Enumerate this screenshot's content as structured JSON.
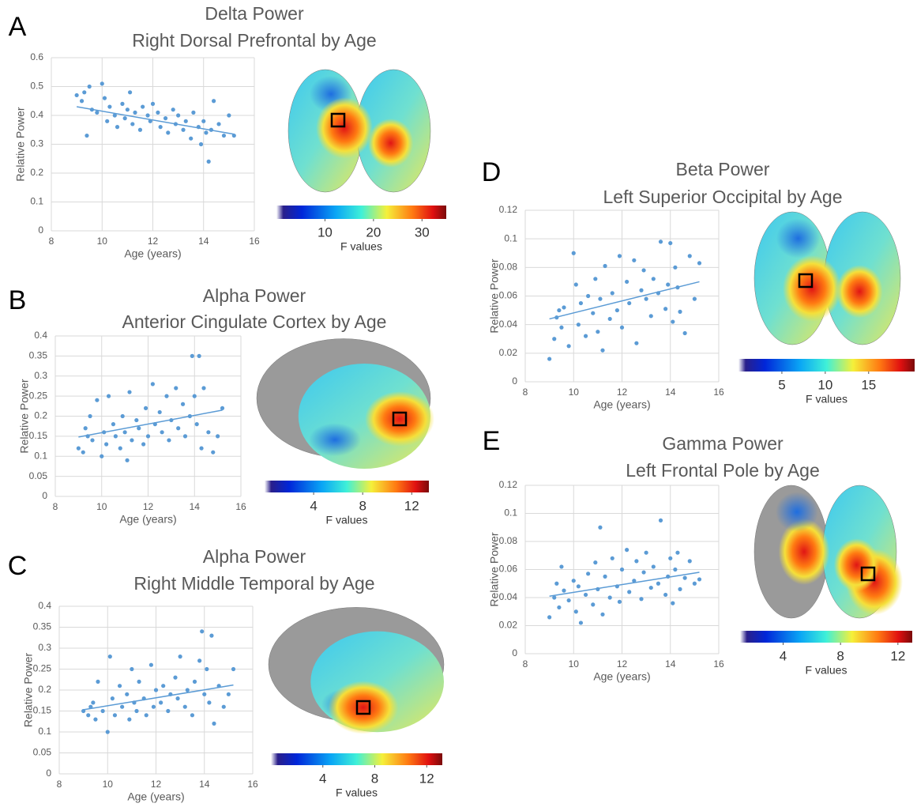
{
  "chart_data": [
    {
      "type": "scatter",
      "panel": "A",
      "title": "Delta Power",
      "subtitle": "Right Dorsal Prefrontal by Age",
      "x_label": "Age (years)",
      "y_label": "Relative Power",
      "xlim": [
        8,
        16
      ],
      "ylim": [
        0,
        0.6
      ],
      "xticks": [
        8,
        10,
        12,
        14,
        16
      ],
      "yticks": [
        0,
        0.1,
        0.2,
        0.3,
        0.4,
        0.5,
        0.6
      ],
      "grid": true,
      "series": [
        {
          "type": "scatter",
          "color": "#5b9bd5",
          "x": [
            9.0,
            9.2,
            9.3,
            9.4,
            9.5,
            9.6,
            9.8,
            10.0,
            10.1,
            10.2,
            10.3,
            10.5,
            10.6,
            10.8,
            10.9,
            11.0,
            11.1,
            11.2,
            11.3,
            11.5,
            11.6,
            11.8,
            11.9,
            12.0,
            12.2,
            12.3,
            12.5,
            12.6,
            12.8,
            12.9,
            13.0,
            13.2,
            13.3,
            13.5,
            13.6,
            13.8,
            13.9,
            14.0,
            14.1,
            14.2,
            14.3,
            14.4,
            14.6,
            14.8,
            15.0,
            15.2
          ],
          "values": [
            0.47,
            0.45,
            0.48,
            0.33,
            0.5,
            0.42,
            0.41,
            0.51,
            0.46,
            0.38,
            0.43,
            0.4,
            0.36,
            0.44,
            0.39,
            0.42,
            0.48,
            0.37,
            0.41,
            0.35,
            0.43,
            0.4,
            0.38,
            0.44,
            0.41,
            0.36,
            0.39,
            0.34,
            0.42,
            0.37,
            0.4,
            0.35,
            0.38,
            0.32,
            0.41,
            0.36,
            0.3,
            0.38,
            0.34,
            0.24,
            0.35,
            0.45,
            0.37,
            0.33,
            0.4,
            0.33
          ]
        },
        {
          "type": "line",
          "color": "#5b9bd5",
          "x": [
            9,
            15.2
          ],
          "values": [
            0.43,
            0.335
          ]
        }
      ],
      "colorbar": {
        "label": "F values",
        "lim": [
          0,
          35
        ],
        "ticks": [
          10,
          20,
          30
        ]
      }
    },
    {
      "type": "scatter",
      "panel": "B",
      "title": "Alpha Power",
      "subtitle": "Anterior Cingulate Cortex by Age",
      "x_label": "Age (years)",
      "y_label": "Relative Power",
      "xlim": [
        8,
        16
      ],
      "ylim": [
        0,
        0.4
      ],
      "xticks": [
        8,
        10,
        12,
        14,
        16
      ],
      "yticks": [
        0,
        0.05,
        0.1,
        0.15,
        0.2,
        0.25,
        0.3,
        0.35,
        0.4
      ],
      "grid": true,
      "series": [
        {
          "type": "scatter",
          "color": "#5b9bd5",
          "x": [
            9.0,
            9.2,
            9.3,
            9.4,
            9.5,
            9.6,
            9.8,
            10.0,
            10.1,
            10.2,
            10.3,
            10.5,
            10.6,
            10.8,
            10.9,
            11.0,
            11.1,
            11.2,
            11.3,
            11.5,
            11.6,
            11.8,
            11.9,
            12.0,
            12.2,
            12.3,
            12.5,
            12.6,
            12.8,
            12.9,
            13.0,
            13.2,
            13.3,
            13.5,
            13.6,
            13.8,
            13.9,
            14.0,
            14.1,
            14.2,
            14.3,
            14.4,
            14.6,
            14.8,
            15.0,
            15.2
          ],
          "values": [
            0.12,
            0.11,
            0.17,
            0.15,
            0.2,
            0.14,
            0.24,
            0.1,
            0.16,
            0.13,
            0.25,
            0.18,
            0.15,
            0.12,
            0.2,
            0.16,
            0.09,
            0.26,
            0.14,
            0.19,
            0.17,
            0.13,
            0.22,
            0.15,
            0.28,
            0.18,
            0.21,
            0.16,
            0.25,
            0.14,
            0.19,
            0.27,
            0.17,
            0.23,
            0.15,
            0.2,
            0.35,
            0.25,
            0.18,
            0.35,
            0.12,
            0.27,
            0.16,
            0.11,
            0.15,
            0.22
          ]
        },
        {
          "type": "line",
          "color": "#5b9bd5",
          "x": [
            9,
            15.2
          ],
          "values": [
            0.148,
            0.215
          ]
        }
      ],
      "colorbar": {
        "label": "F values",
        "lim": [
          0,
          13.4
        ],
        "ticks": [
          4,
          8,
          12
        ]
      }
    },
    {
      "type": "scatter",
      "panel": "C",
      "title": "Alpha Power",
      "subtitle": "Right Middle Temporal by Age",
      "x_label": "Age (years)",
      "y_label": "Relative Power",
      "xlim": [
        8,
        16
      ],
      "ylim": [
        0,
        0.4
      ],
      "xticks": [
        8,
        10,
        12,
        14,
        16
      ],
      "yticks": [
        0,
        0.05,
        0.1,
        0.15,
        0.2,
        0.25,
        0.3,
        0.35,
        0.4
      ],
      "grid": true,
      "series": [
        {
          "type": "scatter",
          "color": "#5b9bd5",
          "x": [
            9.0,
            9.2,
            9.3,
            9.4,
            9.5,
            9.6,
            9.8,
            10.0,
            10.1,
            10.2,
            10.3,
            10.5,
            10.6,
            10.8,
            10.9,
            11.0,
            11.1,
            11.2,
            11.3,
            11.5,
            11.6,
            11.8,
            11.9,
            12.0,
            12.2,
            12.3,
            12.5,
            12.6,
            12.8,
            12.9,
            13.0,
            13.2,
            13.3,
            13.5,
            13.6,
            13.8,
            13.9,
            14.0,
            14.1,
            14.2,
            14.3,
            14.4,
            14.6,
            14.8,
            15.0,
            15.2
          ],
          "values": [
            0.15,
            0.14,
            0.16,
            0.17,
            0.13,
            0.22,
            0.15,
            0.1,
            0.28,
            0.18,
            0.14,
            0.21,
            0.16,
            0.19,
            0.13,
            0.25,
            0.17,
            0.15,
            0.22,
            0.18,
            0.14,
            0.26,
            0.16,
            0.2,
            0.17,
            0.21,
            0.15,
            0.19,
            0.23,
            0.18,
            0.28,
            0.16,
            0.2,
            0.14,
            0.22,
            0.27,
            0.34,
            0.19,
            0.25,
            0.17,
            0.33,
            0.12,
            0.21,
            0.16,
            0.19,
            0.25
          ]
        },
        {
          "type": "line",
          "color": "#5b9bd5",
          "x": [
            9,
            15.2
          ],
          "values": [
            0.153,
            0.212
          ]
        }
      ],
      "colorbar": {
        "label": "F values",
        "lim": [
          0,
          13.2
        ],
        "ticks": [
          4,
          8,
          12
        ]
      }
    },
    {
      "type": "scatter",
      "panel": "D",
      "title": "Beta Power",
      "subtitle": "Left Superior Occipital by Age",
      "x_label": "Age (years)",
      "y_label": "Relative Power",
      "xlim": [
        8,
        16
      ],
      "ylim": [
        0,
        0.12
      ],
      "xticks": [
        8,
        10,
        12,
        14,
        16
      ],
      "yticks": [
        0,
        0.02,
        0.04,
        0.06,
        0.08,
        0.1,
        0.12
      ],
      "grid": true,
      "series": [
        {
          "type": "scatter",
          "color": "#5b9bd5",
          "x": [
            9.0,
            9.2,
            9.3,
            9.4,
            9.5,
            9.6,
            9.8,
            10.0,
            10.1,
            10.2,
            10.3,
            10.5,
            10.6,
            10.8,
            10.9,
            11.0,
            11.1,
            11.2,
            11.3,
            11.5,
            11.6,
            11.8,
            11.9,
            12.0,
            12.2,
            12.3,
            12.5,
            12.6,
            12.8,
            12.9,
            13.0,
            13.2,
            13.3,
            13.5,
            13.6,
            13.8,
            13.9,
            14.0,
            14.1,
            14.2,
            14.3,
            14.4,
            14.6,
            14.8,
            15.0,
            15.2
          ],
          "values": [
            0.016,
            0.03,
            0.045,
            0.05,
            0.038,
            0.052,
            0.025,
            0.09,
            0.068,
            0.04,
            0.055,
            0.032,
            0.06,
            0.048,
            0.072,
            0.035,
            0.058,
            0.022,
            0.081,
            0.044,
            0.062,
            0.05,
            0.088,
            0.038,
            0.07,
            0.055,
            0.085,
            0.027,
            0.064,
            0.078,
            0.058,
            0.046,
            0.072,
            0.062,
            0.098,
            0.051,
            0.068,
            0.097,
            0.042,
            0.08,
            0.066,
            0.049,
            0.034,
            0.088,
            0.058,
            0.083
          ]
        },
        {
          "type": "line",
          "color": "#5b9bd5",
          "x": [
            9,
            15.2
          ],
          "values": [
            0.044,
            0.07
          ]
        }
      ],
      "colorbar": {
        "label": "F values",
        "lim": [
          0,
          20.3
        ],
        "ticks": [
          5,
          10,
          15
        ]
      }
    },
    {
      "type": "scatter",
      "panel": "E",
      "title": "Gamma Power",
      "subtitle": "Left Frontal Pole by Age",
      "x_label": "Age (years)",
      "y_label": "Relative Power",
      "xlim": [
        8,
        16
      ],
      "ylim": [
        0,
        0.12
      ],
      "xticks": [
        8,
        10,
        12,
        14,
        16
      ],
      "yticks": [
        0,
        0.02,
        0.04,
        0.06,
        0.08,
        0.1,
        0.12
      ],
      "grid": true,
      "series": [
        {
          "type": "scatter",
          "color": "#5b9bd5",
          "x": [
            9.0,
            9.2,
            9.3,
            9.4,
            9.5,
            9.6,
            9.8,
            10.0,
            10.1,
            10.2,
            10.3,
            10.5,
            10.6,
            10.8,
            10.9,
            11.0,
            11.1,
            11.2,
            11.3,
            11.5,
            11.6,
            11.8,
            11.9,
            12.0,
            12.2,
            12.3,
            12.5,
            12.6,
            12.8,
            12.9,
            13.0,
            13.2,
            13.3,
            13.5,
            13.6,
            13.8,
            13.9,
            14.0,
            14.1,
            14.2,
            14.3,
            14.4,
            14.6,
            14.8,
            15.0,
            15.2
          ],
          "values": [
            0.026,
            0.04,
            0.05,
            0.033,
            0.062,
            0.045,
            0.038,
            0.052,
            0.03,
            0.048,
            0.022,
            0.042,
            0.057,
            0.035,
            0.065,
            0.046,
            0.09,
            0.028,
            0.055,
            0.04,
            0.068,
            0.048,
            0.037,
            0.06,
            0.074,
            0.044,
            0.052,
            0.066,
            0.039,
            0.058,
            0.072,
            0.047,
            0.062,
            0.05,
            0.095,
            0.042,
            0.055,
            0.068,
            0.036,
            0.06,
            0.072,
            0.046,
            0.054,
            0.066,
            0.05,
            0.053
          ]
        },
        {
          "type": "line",
          "color": "#5b9bd5",
          "x": [
            9,
            15.2
          ],
          "values": [
            0.041,
            0.058
          ]
        }
      ],
      "colorbar": {
        "label": "F values",
        "lim": [
          1,
          13
        ],
        "ticks": [
          4,
          8,
          12
        ]
      }
    }
  ]
}
